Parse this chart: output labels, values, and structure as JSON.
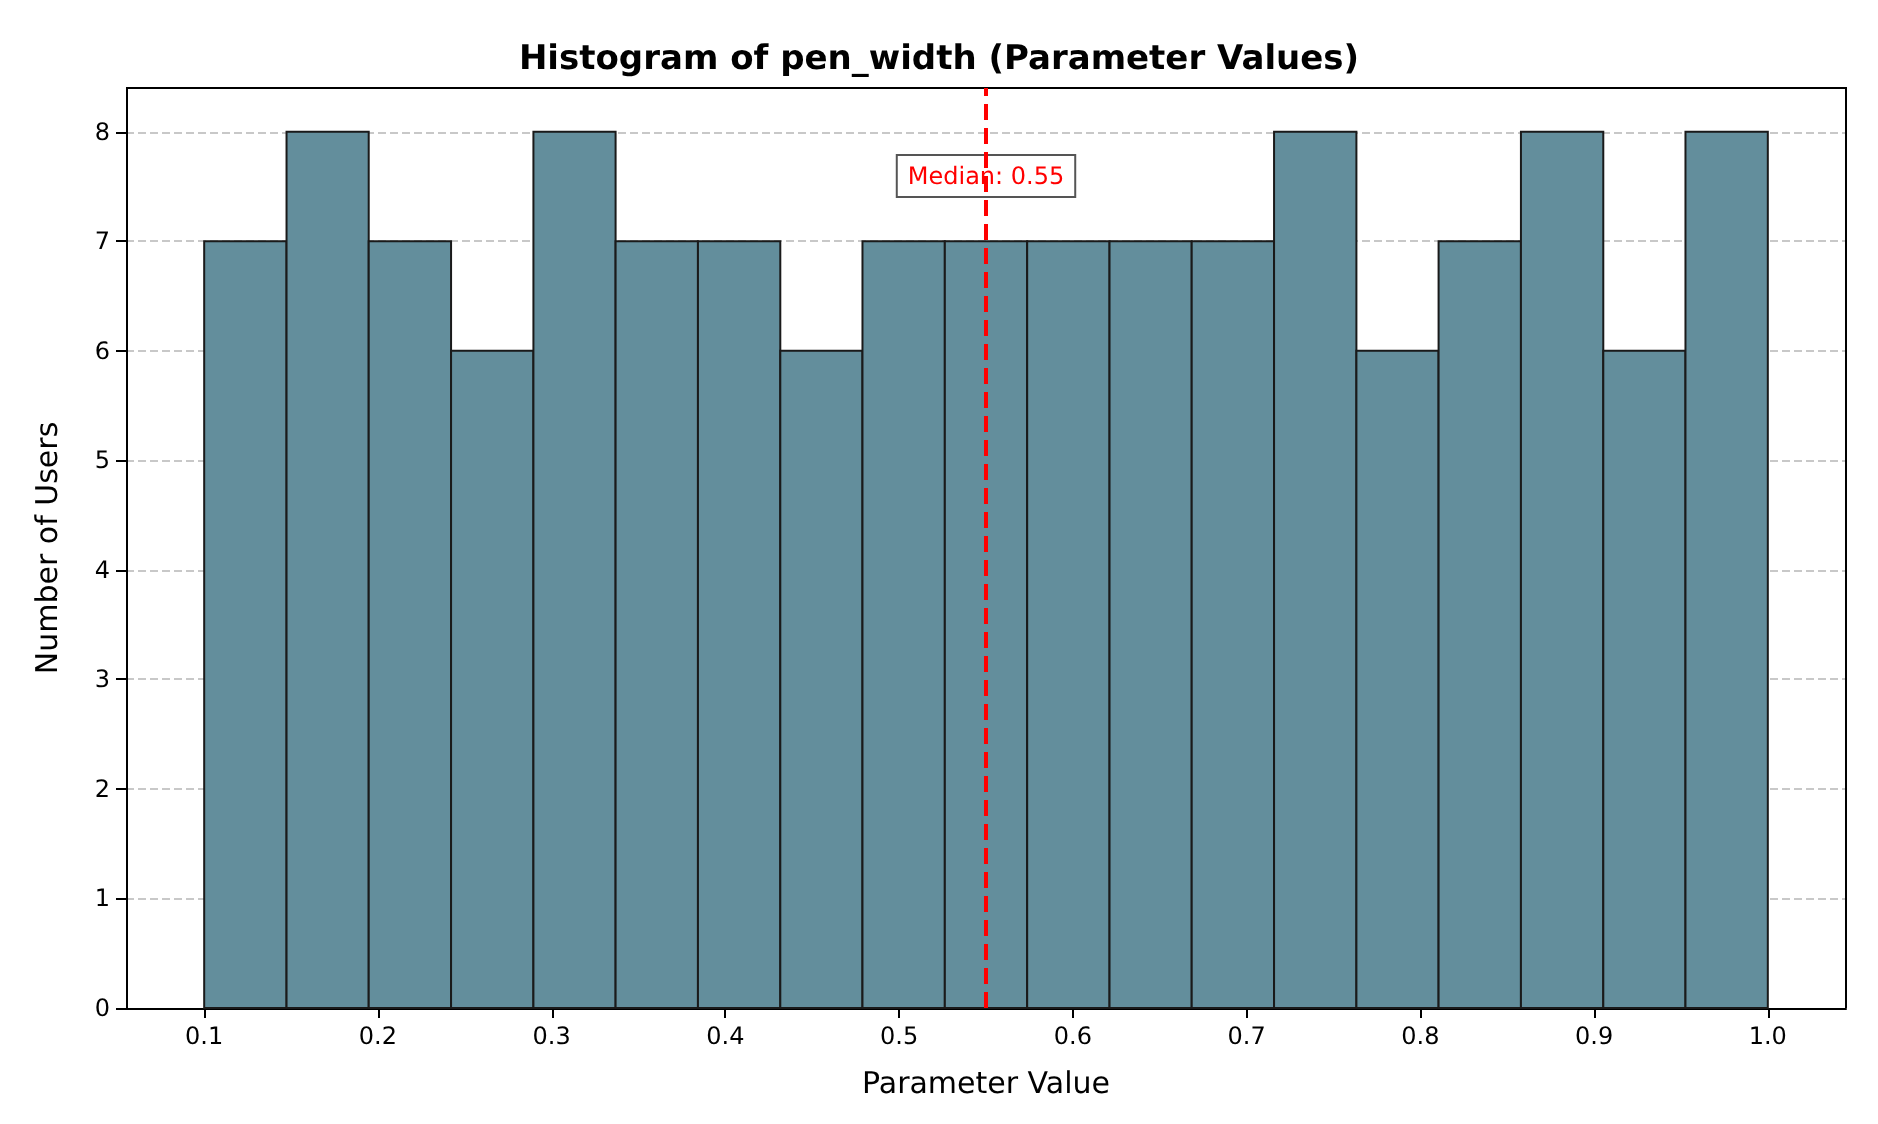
{
  "chart_data": {
    "type": "histogram",
    "title": "Histogram of pen_width (Parameter Values)",
    "xlabel": "Parameter Value",
    "ylabel": "Number of Users",
    "bins": [
      0.1,
      0.1474,
      0.1947,
      0.2421,
      0.2895,
      0.3368,
      0.3842,
      0.4316,
      0.4789,
      0.5263,
      0.5737,
      0.6211,
      0.6684,
      0.7158,
      0.7632,
      0.8105,
      0.8579,
      0.9053,
      0.9526,
      1.0
    ],
    "values": [
      7,
      8,
      7,
      6,
      8,
      7,
      7,
      6,
      7,
      7,
      7,
      7,
      7,
      8,
      6,
      7,
      8,
      6,
      8
    ],
    "color": "#638e9c",
    "xlim": [
      0.055,
      1.045
    ],
    "xticks": [
      0.1,
      0.2,
      0.3,
      0.4,
      0.5,
      0.6,
      0.7,
      0.8,
      0.9,
      {
        "value": 1,
        "label": "1.0"
      }
    ],
    "ylim": [
      0,
      8.4
    ],
    "yticks": [
      0,
      1,
      2,
      3,
      4,
      5,
      6,
      7,
      8
    ],
    "grid": "y",
    "ref_lines": [
      {
        "axis": "x",
        "value": 0.55,
        "label": "Median: 0.55",
        "color": "#ff0000",
        "line_style": "dashed"
      }
    ]
  }
}
